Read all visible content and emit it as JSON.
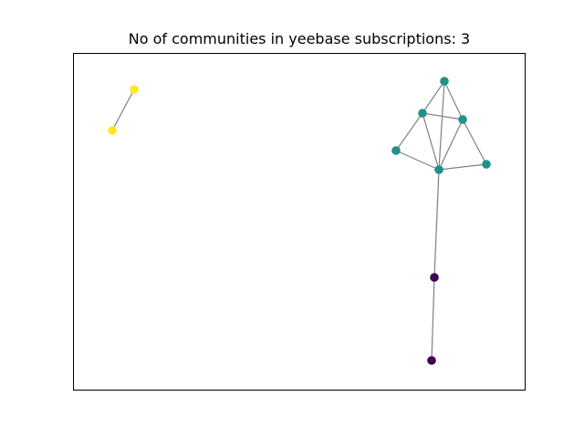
{
  "title": "No of communities in yeebase subscriptions: 3",
  "chart_data": {
    "type": "network",
    "title": "No of communities in yeebase subscriptions: 3",
    "community_count": 3,
    "community_colors": {
      "0": "#440154",
      "1": "#21918c",
      "2": "#fde725"
    },
    "edge_color": "#808080",
    "axes_visible": false,
    "nodes": [
      {
        "id": "n1",
        "community": 2
      },
      {
        "id": "n2",
        "community": 2
      },
      {
        "id": "n3",
        "community": 1
      },
      {
        "id": "n4",
        "community": 1
      },
      {
        "id": "n5",
        "community": 1
      },
      {
        "id": "n6",
        "community": 1
      },
      {
        "id": "n7",
        "community": 1
      },
      {
        "id": "n8",
        "community": 1
      },
      {
        "id": "n9",
        "community": 0
      },
      {
        "id": "n10",
        "community": 0
      }
    ],
    "edges": [
      [
        "n1",
        "n2"
      ],
      [
        "n3",
        "n4"
      ],
      [
        "n3",
        "n5"
      ],
      [
        "n3",
        "n7"
      ],
      [
        "n4",
        "n5"
      ],
      [
        "n4",
        "n6"
      ],
      [
        "n4",
        "n7"
      ],
      [
        "n5",
        "n7"
      ],
      [
        "n5",
        "n8"
      ],
      [
        "n6",
        "n7"
      ],
      [
        "n7",
        "n8"
      ],
      [
        "n7",
        "n9"
      ],
      [
        "n9",
        "n10"
      ]
    ]
  }
}
